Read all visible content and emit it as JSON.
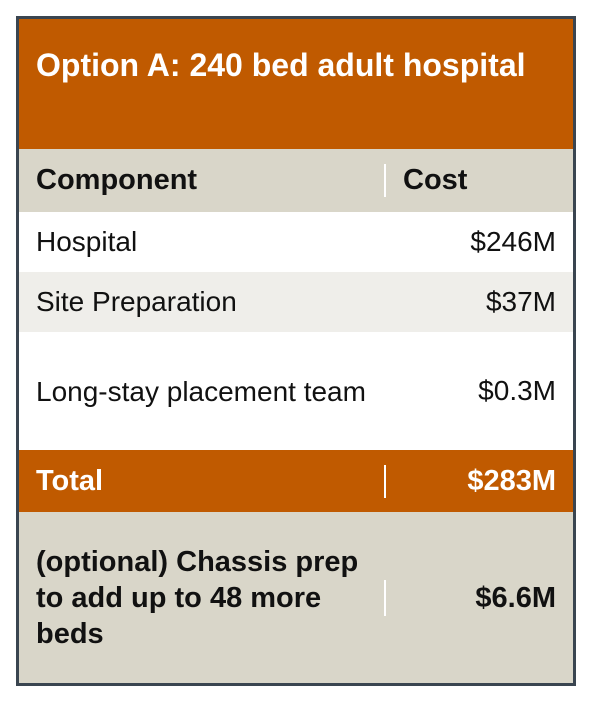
{
  "table": {
    "title": "Option A: 240 bed adult hospital",
    "header": {
      "component": "Component",
      "cost": "Cost"
    },
    "rows": [
      {
        "component": "Hospital",
        "cost": "$246M"
      },
      {
        "component": "Site Preparation",
        "cost": "$37M"
      },
      {
        "component": "Long-stay placement team",
        "cost": "$0.3M"
      }
    ],
    "total": {
      "label": "Total",
      "cost": "$283M"
    },
    "optional": {
      "label": "(optional) Chassis prep to add up to 48 more beds",
      "cost": "$6.6M"
    },
    "colors": {
      "accent": "#c05a00",
      "band": "#d9d6c9",
      "border": "#3a4550"
    }
  }
}
